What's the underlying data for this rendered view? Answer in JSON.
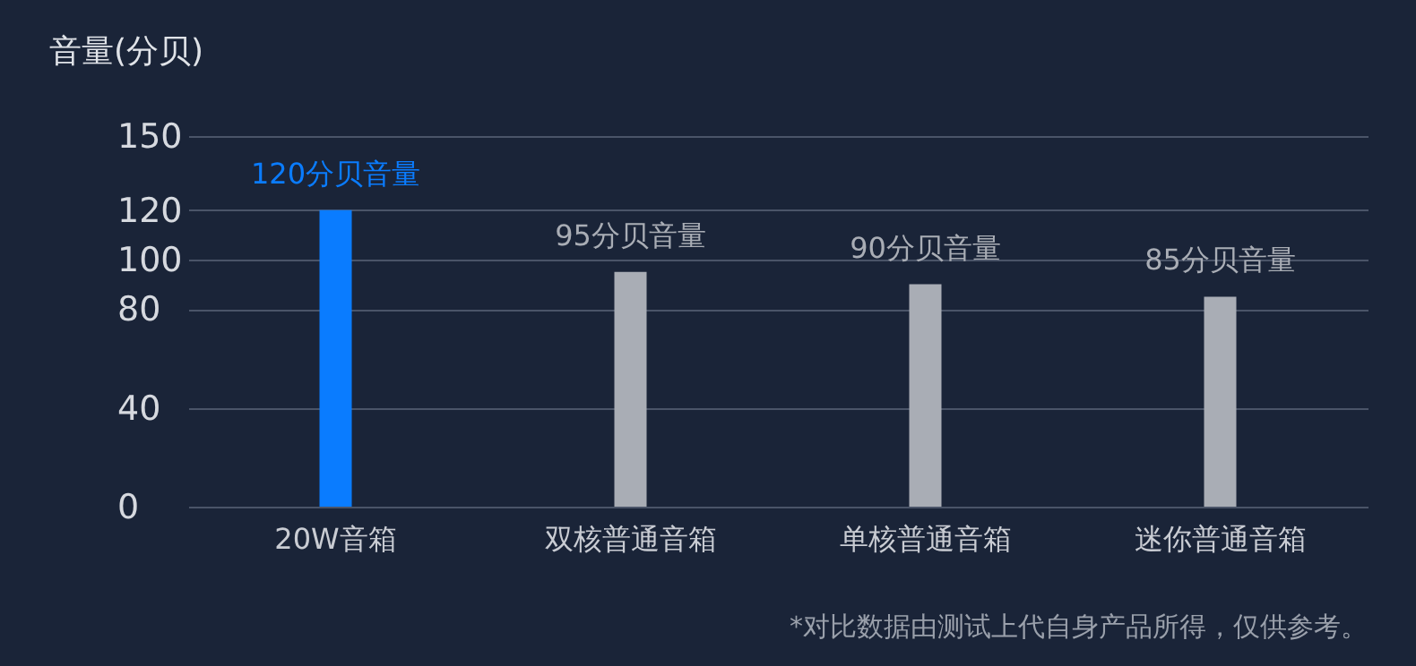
{
  "chart_data": {
    "type": "bar",
    "ylabel": "音量(分贝)",
    "categories": [
      "20W音箱",
      "双核普通音箱",
      "单核普通音箱",
      "迷你普通音箱"
    ],
    "values": [
      120,
      95,
      90,
      85
    ],
    "colors": [
      "#0a7cff",
      "#a9adb5",
      "#a9adb5",
      "#a9adb5"
    ],
    "value_labels": [
      "120分贝音量",
      "95分贝音量",
      "90分贝音量",
      "85分贝音量"
    ],
    "ylim": [
      0,
      150
    ],
    "yticks": [
      0,
      40,
      80,
      100,
      120,
      150
    ],
    "grid": "y",
    "annotations": [
      "*对比数据由测试上代自身产品所得，仅供参考。"
    ]
  }
}
